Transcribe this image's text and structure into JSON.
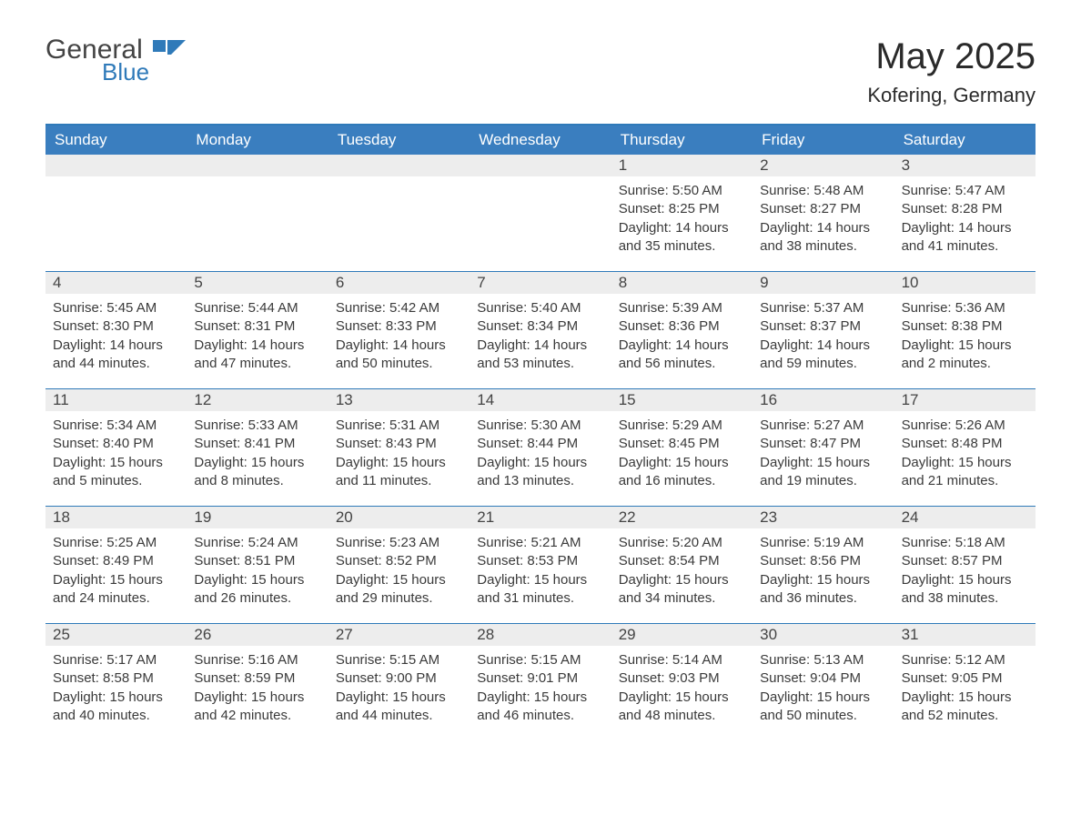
{
  "brand": {
    "general": "General",
    "blue": "Blue"
  },
  "title": {
    "month": "May 2025",
    "location": "Kofering, Germany"
  },
  "colors": {
    "header_bg": "#3a7ebf",
    "header_text": "#ffffff",
    "rule": "#2f7ab9",
    "daynum_bg": "#ededed",
    "text": "#333333",
    "page_bg": "#ffffff"
  },
  "dow": [
    "Sunday",
    "Monday",
    "Tuesday",
    "Wednesday",
    "Thursday",
    "Friday",
    "Saturday"
  ],
  "layout": {
    "blanks_before": 4
  },
  "days": [
    {
      "n": 1,
      "sunrise": "5:50 AM",
      "sunset": "8:25 PM",
      "daylight": "14 hours and 35 minutes."
    },
    {
      "n": 2,
      "sunrise": "5:48 AM",
      "sunset": "8:27 PM",
      "daylight": "14 hours and 38 minutes."
    },
    {
      "n": 3,
      "sunrise": "5:47 AM",
      "sunset": "8:28 PM",
      "daylight": "14 hours and 41 minutes."
    },
    {
      "n": 4,
      "sunrise": "5:45 AM",
      "sunset": "8:30 PM",
      "daylight": "14 hours and 44 minutes."
    },
    {
      "n": 5,
      "sunrise": "5:44 AM",
      "sunset": "8:31 PM",
      "daylight": "14 hours and 47 minutes."
    },
    {
      "n": 6,
      "sunrise": "5:42 AM",
      "sunset": "8:33 PM",
      "daylight": "14 hours and 50 minutes."
    },
    {
      "n": 7,
      "sunrise": "5:40 AM",
      "sunset": "8:34 PM",
      "daylight": "14 hours and 53 minutes."
    },
    {
      "n": 8,
      "sunrise": "5:39 AM",
      "sunset": "8:36 PM",
      "daylight": "14 hours and 56 minutes."
    },
    {
      "n": 9,
      "sunrise": "5:37 AM",
      "sunset": "8:37 PM",
      "daylight": "14 hours and 59 minutes."
    },
    {
      "n": 10,
      "sunrise": "5:36 AM",
      "sunset": "8:38 PM",
      "daylight": "15 hours and 2 minutes."
    },
    {
      "n": 11,
      "sunrise": "5:34 AM",
      "sunset": "8:40 PM",
      "daylight": "15 hours and 5 minutes."
    },
    {
      "n": 12,
      "sunrise": "5:33 AM",
      "sunset": "8:41 PM",
      "daylight": "15 hours and 8 minutes."
    },
    {
      "n": 13,
      "sunrise": "5:31 AM",
      "sunset": "8:43 PM",
      "daylight": "15 hours and 11 minutes."
    },
    {
      "n": 14,
      "sunrise": "5:30 AM",
      "sunset": "8:44 PM",
      "daylight": "15 hours and 13 minutes."
    },
    {
      "n": 15,
      "sunrise": "5:29 AM",
      "sunset": "8:45 PM",
      "daylight": "15 hours and 16 minutes."
    },
    {
      "n": 16,
      "sunrise": "5:27 AM",
      "sunset": "8:47 PM",
      "daylight": "15 hours and 19 minutes."
    },
    {
      "n": 17,
      "sunrise": "5:26 AM",
      "sunset": "8:48 PM",
      "daylight": "15 hours and 21 minutes."
    },
    {
      "n": 18,
      "sunrise": "5:25 AM",
      "sunset": "8:49 PM",
      "daylight": "15 hours and 24 minutes."
    },
    {
      "n": 19,
      "sunrise": "5:24 AM",
      "sunset": "8:51 PM",
      "daylight": "15 hours and 26 minutes."
    },
    {
      "n": 20,
      "sunrise": "5:23 AM",
      "sunset": "8:52 PM",
      "daylight": "15 hours and 29 minutes."
    },
    {
      "n": 21,
      "sunrise": "5:21 AM",
      "sunset": "8:53 PM",
      "daylight": "15 hours and 31 minutes."
    },
    {
      "n": 22,
      "sunrise": "5:20 AM",
      "sunset": "8:54 PM",
      "daylight": "15 hours and 34 minutes."
    },
    {
      "n": 23,
      "sunrise": "5:19 AM",
      "sunset": "8:56 PM",
      "daylight": "15 hours and 36 minutes."
    },
    {
      "n": 24,
      "sunrise": "5:18 AM",
      "sunset": "8:57 PM",
      "daylight": "15 hours and 38 minutes."
    },
    {
      "n": 25,
      "sunrise": "5:17 AM",
      "sunset": "8:58 PM",
      "daylight": "15 hours and 40 minutes."
    },
    {
      "n": 26,
      "sunrise": "5:16 AM",
      "sunset": "8:59 PM",
      "daylight": "15 hours and 42 minutes."
    },
    {
      "n": 27,
      "sunrise": "5:15 AM",
      "sunset": "9:00 PM",
      "daylight": "15 hours and 44 minutes."
    },
    {
      "n": 28,
      "sunrise": "5:15 AM",
      "sunset": "9:01 PM",
      "daylight": "15 hours and 46 minutes."
    },
    {
      "n": 29,
      "sunrise": "5:14 AM",
      "sunset": "9:03 PM",
      "daylight": "15 hours and 48 minutes."
    },
    {
      "n": 30,
      "sunrise": "5:13 AM",
      "sunset": "9:04 PM",
      "daylight": "15 hours and 50 minutes."
    },
    {
      "n": 31,
      "sunrise": "5:12 AM",
      "sunset": "9:05 PM",
      "daylight": "15 hours and 52 minutes."
    }
  ],
  "labels": {
    "sunrise": "Sunrise: ",
    "sunset": "Sunset: ",
    "daylight": "Daylight: "
  }
}
